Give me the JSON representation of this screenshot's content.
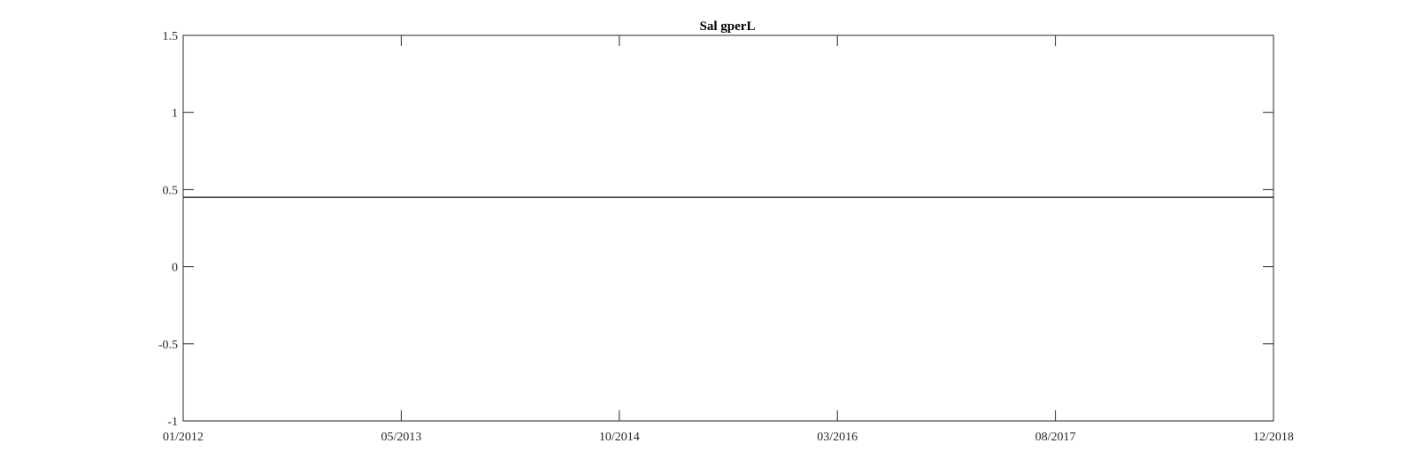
{
  "chart_data": {
    "type": "line",
    "title": "Sal gperL",
    "xlabel": "",
    "ylabel": "",
    "x_tick_labels": [
      "01/2012",
      "05/2013",
      "10/2014",
      "03/2016",
      "08/2017",
      "12/2018"
    ],
    "y_tick_labels": [
      "-1",
      "-0.5",
      "0",
      "0.5",
      "1",
      "1.5"
    ],
    "y_ticks": [
      -1,
      -0.5,
      0,
      0.5,
      1,
      1.5
    ],
    "ylim": [
      -1,
      1.5
    ],
    "grid": false,
    "series": [
      {
        "x": [
          "01/2012",
          "12/2018"
        ],
        "values": [
          0.45,
          0.45
        ]
      }
    ],
    "colors": {
      "line": "#000000",
      "axes": "#262626",
      "background": "#ffffff"
    }
  }
}
